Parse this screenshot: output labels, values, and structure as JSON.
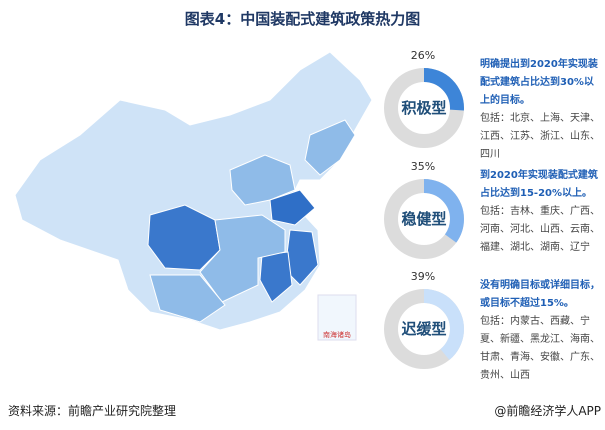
{
  "title": "图表4：中国装配式建筑政策热力图",
  "map": {
    "inset_label": "南海诸岛",
    "colors": {
      "aggressive": "#3a78cc",
      "steady": "#8fbbe8",
      "slow": "#cfe3f7"
    }
  },
  "categories": [
    {
      "label": "积极型",
      "percent": 26,
      "percent_text": "26%",
      "color": "#3d85d8",
      "headline": "明确提出到2020年实现装配式建筑占比达到30%以上的目标。",
      "members": "包括：北京、上海、天津、江西、江苏、浙江、山东、四川"
    },
    {
      "label": "稳健型",
      "percent": 35,
      "percent_text": "35%",
      "color": "#7fb2ee",
      "headline": "到2020年实现装配式建筑占比达到15-20%以上。",
      "members": "包括：吉林、重庆、广西、河南、河北、山西、云南、福建、湖北、湖南、辽宁"
    },
    {
      "label": "迟缓型",
      "percent": 39,
      "percent_text": "39%",
      "color": "#c9e0fa",
      "headline": "没有明确目标或详细目标，或目标不超过15%。",
      "members": "包括：内蒙古、西藏、宁夏、新疆、黑龙江、海南、甘肃、青海、安徽、广东、贵州、山西"
    }
  ],
  "footer": {
    "source": "资料来源：前瞻产业研究院整理",
    "credit": "@前瞻经济学人APP"
  }
}
